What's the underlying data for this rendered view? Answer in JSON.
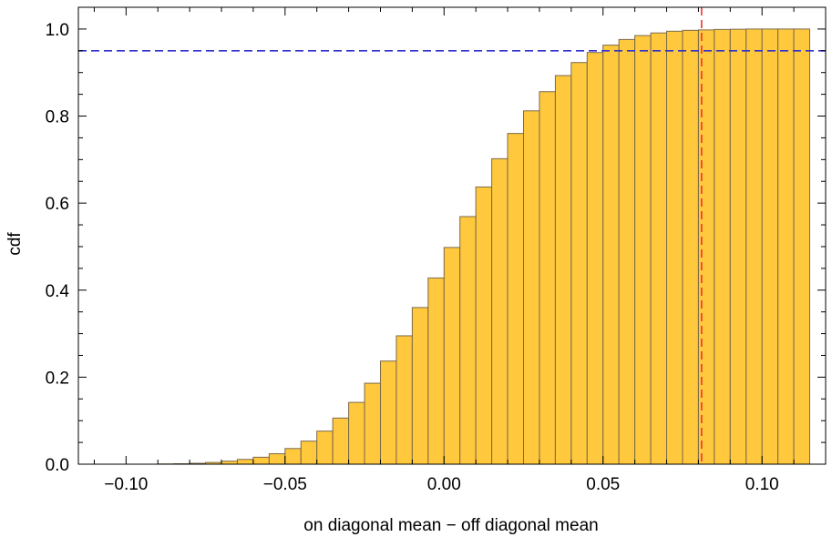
{
  "chart_data": {
    "type": "bar",
    "subtype": "cumulative-histogram",
    "title": "",
    "xlabel": "on diagonal mean − off diagonal mean",
    "ylabel": "cdf",
    "xlim": [
      -0.115,
      0.12
    ],
    "ylim": [
      0,
      1.05
    ],
    "bin_width": 0.005,
    "bin_starts": [
      -0.115,
      -0.11,
      -0.105,
      -0.1,
      -0.095,
      -0.09,
      -0.085,
      -0.08,
      -0.075,
      -0.07,
      -0.065,
      -0.06,
      -0.055,
      -0.05,
      -0.045,
      -0.04,
      -0.035,
      -0.03,
      -0.025,
      -0.02,
      -0.015,
      -0.01,
      -0.005,
      0.0,
      0.005,
      0.01,
      0.015,
      0.02,
      0.025,
      0.03,
      0.035,
      0.04,
      0.045,
      0.05,
      0.055,
      0.06,
      0.065,
      0.07,
      0.075,
      0.08,
      0.085,
      0.09,
      0.095,
      0.1,
      0.105,
      0.11
    ],
    "values": [
      0.0,
      0.0,
      0.0,
      0.0,
      0.0,
      0.0005,
      0.001,
      0.002,
      0.004,
      0.007,
      0.011,
      0.016,
      0.024,
      0.036,
      0.053,
      0.076,
      0.106,
      0.142,
      0.186,
      0.237,
      0.295,
      0.36,
      0.428,
      0.498,
      0.569,
      0.637,
      0.702,
      0.76,
      0.812,
      0.856,
      0.893,
      0.923,
      0.946,
      0.963,
      0.976,
      0.985,
      0.991,
      0.995,
      0.997,
      0.998,
      0.999,
      0.9995,
      1.0,
      1.0,
      1.0,
      1.0
    ],
    "x_ticks": [
      -0.1,
      -0.05,
      0.0,
      0.05,
      0.1
    ],
    "x_tick_labels": [
      "−0.10",
      "−0.05",
      "0.00",
      "0.05",
      "0.10"
    ],
    "y_ticks": [
      0.0,
      0.2,
      0.4,
      0.6,
      0.8,
      1.0
    ],
    "y_tick_labels": [
      "0.0",
      "0.2",
      "0.4",
      "0.6",
      "0.8",
      "1.0"
    ],
    "reference_lines": [
      {
        "orientation": "horizontal",
        "value": 0.95,
        "style": "dashed",
        "color": "#3333cc"
      },
      {
        "orientation": "vertical",
        "value": 0.081,
        "style": "dashed",
        "color": "#ee3333"
      }
    ],
    "grid": false,
    "colors": {
      "bar_fill": "#ffc83d",
      "bar_stroke": "#7a6a4a",
      "frame": "#000000"
    }
  }
}
